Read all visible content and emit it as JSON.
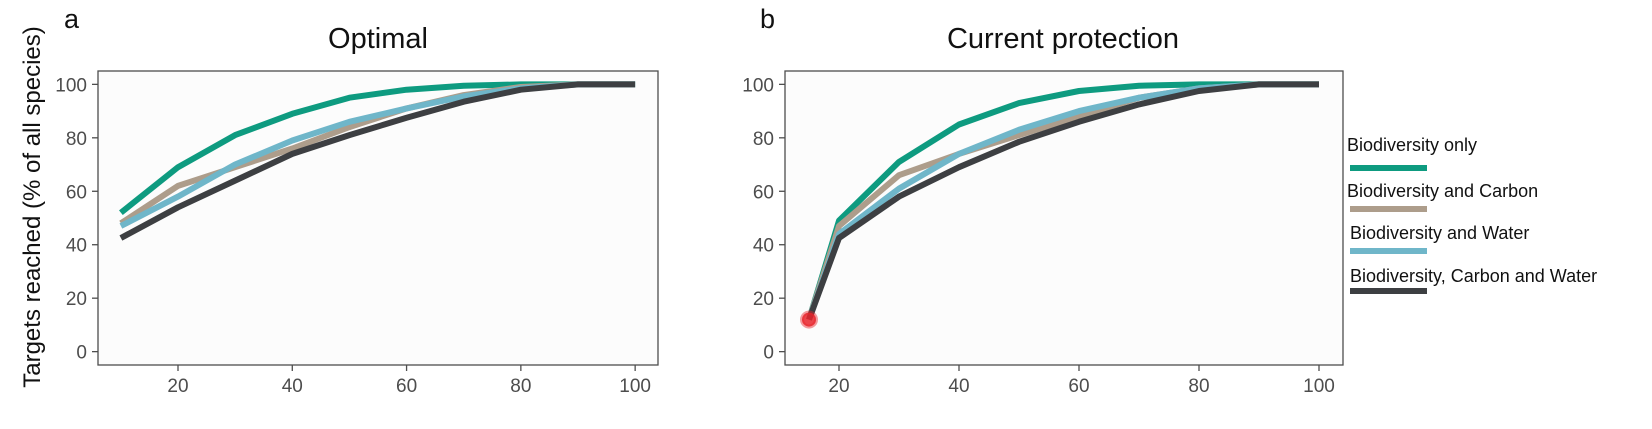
{
  "figure": {
    "ylabel": "Targets reached (% of all species)"
  },
  "colors": {
    "Biodiversity only": "#0e9b80",
    "Biodiversity and Carbon": "#ad9d8b",
    "Biodiversity and Water": "#6fb6c9",
    "Biodiversity, Carbon and Water": "#3d3f42",
    "current_marker": "#e8232a",
    "panel_bg": "#fcfcfc",
    "panel_border": "#4d4d4d"
  },
  "legend": {
    "entries": [
      "Biodiversity only",
      "Biodiversity and Carbon",
      "Biodiversity and Water",
      "Biodiversity, Carbon and Water"
    ],
    "placement": "right"
  },
  "chart_data": [
    {
      "type": "line",
      "panel_label": "a",
      "title": "Optimal",
      "xlabel": "",
      "ylabel": "Targets reached (% of all species)",
      "xlim": [
        6,
        104
      ],
      "ylim": [
        -5,
        105
      ],
      "x_ticks": [
        20,
        40,
        60,
        80,
        100
      ],
      "y_ticks": [
        0,
        20,
        40,
        60,
        80,
        100
      ],
      "grid": false,
      "series": [
        {
          "name": "Biodiversity only",
          "points": [
            [
              10,
              52
            ],
            [
              20,
              69
            ],
            [
              30,
              81
            ],
            [
              40,
              89
            ],
            [
              50,
              95
            ],
            [
              60,
              98
            ],
            [
              70,
              99.5
            ],
            [
              80,
              100
            ],
            [
              90,
              100
            ],
            [
              100,
              100
            ]
          ]
        },
        {
          "name": "Biodiversity and Carbon",
          "points": [
            [
              10,
              48
            ],
            [
              20,
              62
            ],
            [
              30,
              69
            ],
            [
              40,
              76
            ],
            [
              50,
              84
            ],
            [
              60,
              91
            ],
            [
              70,
              96
            ],
            [
              80,
              99
            ],
            [
              90,
              100
            ],
            [
              100,
              100
            ]
          ]
        },
        {
          "name": "Biodiversity and Water",
          "points": [
            [
              10,
              47
            ],
            [
              20,
              58
            ],
            [
              30,
              70
            ],
            [
              40,
              79
            ],
            [
              50,
              86
            ],
            [
              60,
              91
            ],
            [
              70,
              95.5
            ],
            [
              80,
              98.5
            ],
            [
              90,
              100
            ],
            [
              100,
              100
            ]
          ]
        },
        {
          "name": "Biodiversity, Carbon and Water",
          "points": [
            [
              10,
              42.5
            ],
            [
              20,
              54
            ],
            [
              30,
              64
            ],
            [
              40,
              74
            ],
            [
              50,
              81
            ],
            [
              60,
              87.5
            ],
            [
              70,
              93.5
            ],
            [
              80,
              98
            ],
            [
              90,
              100
            ],
            [
              100,
              100
            ]
          ]
        }
      ]
    },
    {
      "type": "line",
      "panel_label": "b",
      "title": "Current protection",
      "xlabel": "",
      "ylabel": "",
      "xlim": [
        11,
        104
      ],
      "ylim": [
        -5,
        105
      ],
      "x_ticks": [
        20,
        40,
        60,
        80,
        100
      ],
      "y_ticks": [
        0,
        20,
        40,
        60,
        80,
        100
      ],
      "grid": false,
      "current_point": [
        15,
        12
      ],
      "series": [
        {
          "name": "Biodiversity only",
          "points": [
            [
              15,
              12
            ],
            [
              20,
              49
            ],
            [
              30,
              71
            ],
            [
              40,
              85
            ],
            [
              50,
              93
            ],
            [
              60,
              97.5
            ],
            [
              70,
              99.5
            ],
            [
              80,
              100
            ],
            [
              90,
              100
            ],
            [
              100,
              100
            ]
          ]
        },
        {
          "name": "Biodiversity and Carbon",
          "points": [
            [
              15,
              12
            ],
            [
              20,
              47
            ],
            [
              30,
              66
            ],
            [
              40,
              74
            ],
            [
              50,
              81
            ],
            [
              60,
              88
            ],
            [
              70,
              95
            ],
            [
              80,
              98.5
            ],
            [
              90,
              100
            ],
            [
              100,
              100
            ]
          ]
        },
        {
          "name": "Biodiversity and Water",
          "points": [
            [
              15,
              12
            ],
            [
              20,
              44
            ],
            [
              30,
              61
            ],
            [
              40,
              74
            ],
            [
              50,
              83
            ],
            [
              60,
              90
            ],
            [
              70,
              95
            ],
            [
              80,
              98.5
            ],
            [
              90,
              100
            ],
            [
              100,
              100
            ]
          ]
        },
        {
          "name": "Biodiversity, Carbon and Water",
          "points": [
            [
              15,
              12
            ],
            [
              20,
              42.5
            ],
            [
              30,
              58
            ],
            [
              40,
              69
            ],
            [
              50,
              78.5
            ],
            [
              60,
              86
            ],
            [
              70,
              92.5
            ],
            [
              80,
              97.5
            ],
            [
              90,
              100
            ],
            [
              100,
              100
            ]
          ]
        }
      ]
    }
  ]
}
